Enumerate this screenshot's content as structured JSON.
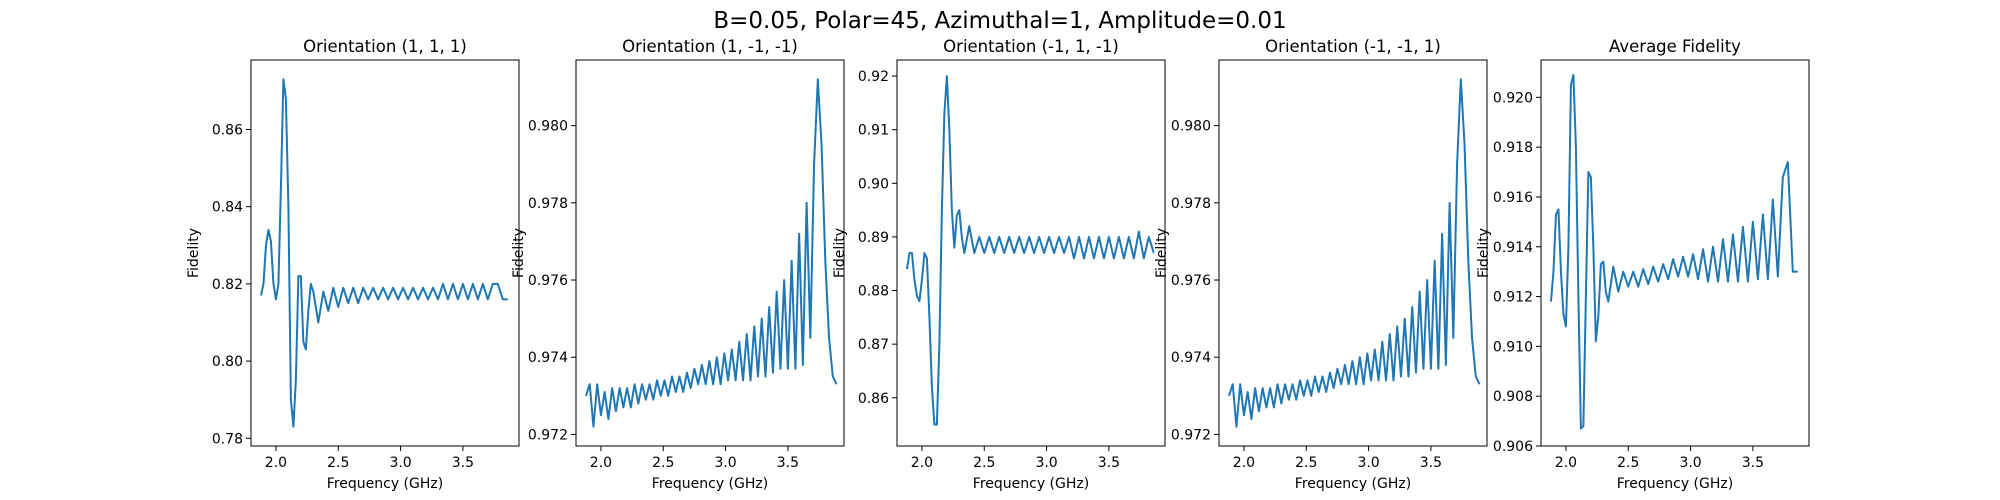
{
  "figure": {
    "suptitle": "B=0.05, Polar=45, Azimuthal=1, Amplitude=0.01"
  },
  "colors": {
    "line": "#1f77b4",
    "axes": "#000000",
    "background": "#ffffff"
  },
  "chart_data": [
    {
      "type": "line",
      "title": "Orientation (1, 1, 1)",
      "xlabel": "Frequency (GHz)",
      "ylabel": "Fidelity",
      "xlim": [
        1.8,
        3.95
      ],
      "ylim": [
        0.778,
        0.878
      ],
      "xticks": [
        2.0,
        2.5,
        3.0,
        3.5
      ],
      "xtick_labels": [
        "2.0",
        "2.5",
        "3.0",
        "3.5"
      ],
      "yticks": [
        0.78,
        0.8,
        0.82,
        0.84,
        0.86
      ],
      "ytick_labels": [
        "0.78",
        "0.80",
        "0.82",
        "0.84",
        "0.86"
      ],
      "grid": false,
      "x": [
        1.88,
        1.9,
        1.92,
        1.94,
        1.96,
        1.98,
        2.0,
        2.02,
        2.04,
        2.06,
        2.08,
        2.1,
        2.12,
        2.14,
        2.16,
        2.18,
        2.2,
        2.22,
        2.24,
        2.26,
        2.28,
        2.3,
        2.34,
        2.38,
        2.42,
        2.46,
        2.5,
        2.54,
        2.58,
        2.62,
        2.66,
        2.7,
        2.74,
        2.78,
        2.82,
        2.86,
        2.9,
        2.94,
        2.98,
        3.02,
        3.06,
        3.1,
        3.14,
        3.18,
        3.22,
        3.26,
        3.3,
        3.34,
        3.38,
        3.42,
        3.46,
        3.5,
        3.54,
        3.58,
        3.62,
        3.66,
        3.7,
        3.74,
        3.78,
        3.82,
        3.86
      ],
      "series": [
        {
          "values": [
            0.817,
            0.82,
            0.83,
            0.834,
            0.831,
            0.82,
            0.816,
            0.82,
            0.845,
            0.873,
            0.868,
            0.84,
            0.79,
            0.783,
            0.795,
            0.822,
            0.822,
            0.805,
            0.803,
            0.813,
            0.82,
            0.818,
            0.81,
            0.818,
            0.813,
            0.819,
            0.814,
            0.819,
            0.815,
            0.819,
            0.815,
            0.819,
            0.816,
            0.819,
            0.816,
            0.819,
            0.816,
            0.819,
            0.816,
            0.819,
            0.816,
            0.819,
            0.816,
            0.819,
            0.816,
            0.819,
            0.816,
            0.82,
            0.816,
            0.82,
            0.816,
            0.82,
            0.816,
            0.82,
            0.816,
            0.82,
            0.816,
            0.82,
            0.82,
            0.816,
            0.816
          ]
        }
      ]
    },
    {
      "type": "line",
      "title": "Orientation (1, -1, -1)",
      "xlabel": "Frequency (GHz)",
      "ylabel": "Fidelity",
      "xlim": [
        1.8,
        3.95
      ],
      "ylim": [
        0.9717,
        0.9817
      ],
      "xticks": [
        2.0,
        2.5,
        3.0,
        3.5
      ],
      "xtick_labels": [
        "2.0",
        "2.5",
        "3.0",
        "3.5"
      ],
      "yticks": [
        0.972,
        0.974,
        0.976,
        0.978,
        0.98
      ],
      "ytick_labels": [
        "0.972",
        "0.974",
        "0.976",
        "0.978",
        "0.980"
      ],
      "grid": false,
      "x": [
        1.88,
        1.91,
        1.94,
        1.97,
        2.0,
        2.03,
        2.06,
        2.09,
        2.12,
        2.15,
        2.18,
        2.21,
        2.24,
        2.27,
        2.3,
        2.33,
        2.36,
        2.39,
        2.42,
        2.45,
        2.48,
        2.51,
        2.54,
        2.57,
        2.6,
        2.63,
        2.66,
        2.69,
        2.72,
        2.75,
        2.78,
        2.81,
        2.84,
        2.87,
        2.9,
        2.93,
        2.96,
        2.99,
        3.02,
        3.05,
        3.08,
        3.11,
        3.14,
        3.17,
        3.2,
        3.23,
        3.26,
        3.29,
        3.32,
        3.35,
        3.38,
        3.41,
        3.44,
        3.47,
        3.5,
        3.53,
        3.56,
        3.59,
        3.62,
        3.65,
        3.68,
        3.71,
        3.74,
        3.77,
        3.8,
        3.83,
        3.86,
        3.89
      ],
      "series": [
        {
          "values": [
            0.973,
            0.9733,
            0.9722,
            0.9733,
            0.9725,
            0.9731,
            0.9724,
            0.9732,
            0.9726,
            0.9732,
            0.9727,
            0.9732,
            0.9727,
            0.9733,
            0.9728,
            0.9733,
            0.9729,
            0.9733,
            0.9729,
            0.9734,
            0.973,
            0.9734,
            0.973,
            0.9735,
            0.9731,
            0.9735,
            0.9731,
            0.9736,
            0.9732,
            0.9737,
            0.9733,
            0.9738,
            0.9733,
            0.9739,
            0.9733,
            0.974,
            0.9733,
            0.9741,
            0.9734,
            0.9742,
            0.9734,
            0.9744,
            0.9734,
            0.9746,
            0.9734,
            0.9748,
            0.9735,
            0.975,
            0.9735,
            0.9753,
            0.9736,
            0.9757,
            0.9737,
            0.976,
            0.9737,
            0.9765,
            0.9737,
            0.9772,
            0.9738,
            0.978,
            0.9745,
            0.979,
            0.9812,
            0.9795,
            0.9765,
            0.9745,
            0.9735,
            0.9733
          ]
        }
      ]
    },
    {
      "type": "line",
      "title": "Orientation (-1, 1, -1)",
      "xlabel": "Frequency (GHz)",
      "ylabel": "Fidelity",
      "xlim": [
        1.8,
        3.95
      ],
      "ylim": [
        0.851,
        0.923
      ],
      "xticks": [
        2.0,
        2.5,
        3.0,
        3.5
      ],
      "xtick_labels": [
        "2.0",
        "2.5",
        "3.0",
        "3.5"
      ],
      "yticks": [
        0.86,
        0.87,
        0.88,
        0.89,
        0.9,
        0.91,
        0.92
      ],
      "ytick_labels": [
        "0.86",
        "0.87",
        "0.88",
        "0.89",
        "0.90",
        "0.91",
        "0.92"
      ],
      "grid": false,
      "x": [
        1.88,
        1.9,
        1.92,
        1.94,
        1.96,
        1.98,
        2.0,
        2.02,
        2.04,
        2.06,
        2.08,
        2.1,
        2.12,
        2.14,
        2.16,
        2.18,
        2.2,
        2.22,
        2.24,
        2.26,
        2.28,
        2.3,
        2.32,
        2.34,
        2.38,
        2.42,
        2.46,
        2.5,
        2.54,
        2.58,
        2.62,
        2.66,
        2.7,
        2.74,
        2.78,
        2.82,
        2.86,
        2.9,
        2.94,
        2.98,
        3.02,
        3.06,
        3.1,
        3.14,
        3.18,
        3.22,
        3.26,
        3.3,
        3.34,
        3.38,
        3.42,
        3.46,
        3.5,
        3.54,
        3.58,
        3.62,
        3.66,
        3.7,
        3.74,
        3.78,
        3.82,
        3.86
      ],
      "series": [
        {
          "values": [
            0.884,
            0.887,
            0.887,
            0.882,
            0.879,
            0.878,
            0.882,
            0.887,
            0.886,
            0.875,
            0.862,
            0.855,
            0.855,
            0.87,
            0.895,
            0.913,
            0.92,
            0.91,
            0.895,
            0.888,
            0.894,
            0.895,
            0.89,
            0.887,
            0.892,
            0.887,
            0.89,
            0.887,
            0.89,
            0.887,
            0.89,
            0.887,
            0.89,
            0.887,
            0.89,
            0.887,
            0.89,
            0.887,
            0.89,
            0.887,
            0.89,
            0.887,
            0.89,
            0.887,
            0.89,
            0.886,
            0.89,
            0.886,
            0.89,
            0.886,
            0.89,
            0.886,
            0.89,
            0.886,
            0.89,
            0.886,
            0.89,
            0.886,
            0.891,
            0.886,
            0.89,
            0.887
          ]
        }
      ]
    },
    {
      "type": "line",
      "title": "Orientation (-1, -1, 1)",
      "xlabel": "Frequency (GHz)",
      "ylabel": "Fidelity",
      "xlim": [
        1.8,
        3.95
      ],
      "ylim": [
        0.9717,
        0.9817
      ],
      "xticks": [
        2.0,
        2.5,
        3.0,
        3.5
      ],
      "xtick_labels": [
        "2.0",
        "2.5",
        "3.0",
        "3.5"
      ],
      "yticks": [
        0.972,
        0.974,
        0.976,
        0.978,
        0.98
      ],
      "ytick_labels": [
        "0.972",
        "0.974",
        "0.976",
        "0.978",
        "0.980"
      ],
      "grid": false,
      "x": [
        1.88,
        1.91,
        1.94,
        1.97,
        2.0,
        2.03,
        2.06,
        2.09,
        2.12,
        2.15,
        2.18,
        2.21,
        2.24,
        2.27,
        2.3,
        2.33,
        2.36,
        2.39,
        2.42,
        2.45,
        2.48,
        2.51,
        2.54,
        2.57,
        2.6,
        2.63,
        2.66,
        2.69,
        2.72,
        2.75,
        2.78,
        2.81,
        2.84,
        2.87,
        2.9,
        2.93,
        2.96,
        2.99,
        3.02,
        3.05,
        3.08,
        3.11,
        3.14,
        3.17,
        3.2,
        3.23,
        3.26,
        3.29,
        3.32,
        3.35,
        3.38,
        3.41,
        3.44,
        3.47,
        3.5,
        3.53,
        3.56,
        3.59,
        3.62,
        3.65,
        3.68,
        3.71,
        3.74,
        3.77,
        3.8,
        3.83,
        3.86,
        3.89
      ],
      "series": [
        {
          "values": [
            0.973,
            0.9733,
            0.9722,
            0.9733,
            0.9725,
            0.9731,
            0.9724,
            0.9732,
            0.9726,
            0.9732,
            0.9727,
            0.9732,
            0.9727,
            0.9733,
            0.9728,
            0.9733,
            0.9729,
            0.9733,
            0.9729,
            0.9734,
            0.973,
            0.9734,
            0.973,
            0.9735,
            0.9731,
            0.9735,
            0.9731,
            0.9736,
            0.9732,
            0.9737,
            0.9733,
            0.9738,
            0.9733,
            0.9739,
            0.9733,
            0.974,
            0.9733,
            0.9741,
            0.9734,
            0.9742,
            0.9734,
            0.9744,
            0.9734,
            0.9746,
            0.9734,
            0.9748,
            0.9735,
            0.975,
            0.9735,
            0.9753,
            0.9736,
            0.9757,
            0.9737,
            0.976,
            0.9737,
            0.9765,
            0.9737,
            0.9772,
            0.9738,
            0.978,
            0.9745,
            0.979,
            0.9812,
            0.9795,
            0.9765,
            0.9745,
            0.9735,
            0.9733
          ]
        }
      ]
    },
    {
      "type": "line",
      "title": "Average Fidelity",
      "xlabel": "Frequency (GHz)",
      "ylabel": "Fidelity",
      "xlim": [
        1.8,
        3.95
      ],
      "ylim": [
        0.906,
        0.9215
      ],
      "xticks": [
        2.0,
        2.5,
        3.0,
        3.5
      ],
      "xtick_labels": [
        "2.0",
        "2.5",
        "3.0",
        "3.5"
      ],
      "yticks": [
        0.906,
        0.908,
        0.91,
        0.912,
        0.914,
        0.916,
        0.918,
        0.92
      ],
      "ytick_labels": [
        "0.906",
        "0.908",
        "0.910",
        "0.912",
        "0.914",
        "0.916",
        "0.918",
        "0.920"
      ],
      "grid": false,
      "x": [
        1.88,
        1.9,
        1.92,
        1.94,
        1.96,
        1.98,
        2.0,
        2.02,
        2.04,
        2.06,
        2.08,
        2.1,
        2.12,
        2.14,
        2.16,
        2.18,
        2.2,
        2.22,
        2.24,
        2.26,
        2.28,
        2.3,
        2.32,
        2.34,
        2.38,
        2.42,
        2.46,
        2.5,
        2.54,
        2.58,
        2.62,
        2.66,
        2.7,
        2.74,
        2.78,
        2.82,
        2.86,
        2.9,
        2.94,
        2.98,
        3.02,
        3.06,
        3.1,
        3.14,
        3.18,
        3.22,
        3.26,
        3.3,
        3.34,
        3.38,
        3.42,
        3.46,
        3.5,
        3.54,
        3.58,
        3.62,
        3.66,
        3.7,
        3.74,
        3.78,
        3.82,
        3.86
      ],
      "series": [
        {
          "values": [
            0.9118,
            0.913,
            0.9153,
            0.9155,
            0.913,
            0.9113,
            0.9108,
            0.914,
            0.9205,
            0.9209,
            0.918,
            0.912,
            0.9067,
            0.9068,
            0.912,
            0.917,
            0.9168,
            0.914,
            0.9102,
            0.9112,
            0.9133,
            0.9134,
            0.9122,
            0.9118,
            0.9132,
            0.9122,
            0.913,
            0.9124,
            0.913,
            0.9124,
            0.9131,
            0.9125,
            0.9132,
            0.9126,
            0.9133,
            0.9127,
            0.9135,
            0.9128,
            0.9136,
            0.9128,
            0.9137,
            0.9127,
            0.9139,
            0.9126,
            0.914,
            0.9126,
            0.9143,
            0.9126,
            0.9145,
            0.9126,
            0.9148,
            0.9126,
            0.915,
            0.9127,
            0.9153,
            0.9127,
            0.9159,
            0.9128,
            0.9168,
            0.9174,
            0.913,
            0.913
          ]
        }
      ]
    }
  ]
}
